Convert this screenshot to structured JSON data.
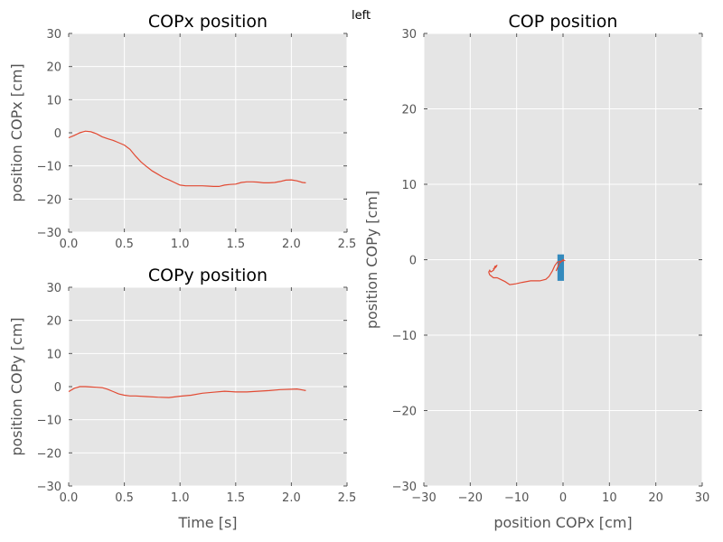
{
  "figure": {
    "top_label": "left"
  },
  "chart_data": [
    {
      "id": "copx",
      "type": "line",
      "title": "COPx position",
      "xlabel": "",
      "ylabel": "position COPx [cm]",
      "xlim": [
        0,
        2.5
      ],
      "ylim": [
        -30,
        30
      ],
      "xticks": [
        "0.0",
        "0.5",
        "1.0",
        "1.5",
        "2.0",
        "2.5"
      ],
      "xtick_values": [
        0,
        0.5,
        1.0,
        1.5,
        2.0,
        2.5
      ],
      "yticks": [
        "30",
        "20",
        "10",
        "0",
        "−10",
        "−20",
        "−30"
      ],
      "ytick_values": [
        30,
        20,
        10,
        0,
        -10,
        -20,
        -30
      ],
      "grid": true,
      "series": [
        {
          "color": "#e24a33",
          "x": [
            0.0,
            0.05,
            0.1,
            0.15,
            0.2,
            0.25,
            0.3,
            0.35,
            0.4,
            0.45,
            0.5,
            0.55,
            0.6,
            0.65,
            0.7,
            0.75,
            0.8,
            0.85,
            0.9,
            0.95,
            1.0,
            1.05,
            1.1,
            1.15,
            1.2,
            1.25,
            1.3,
            1.35,
            1.4,
            1.45,
            1.5,
            1.55,
            1.6,
            1.65,
            1.7,
            1.75,
            1.8,
            1.85,
            1.9,
            1.95,
            2.0,
            2.05,
            2.1,
            2.13
          ],
          "y": [
            -1.5,
            -0.8,
            0.0,
            0.5,
            0.3,
            -0.3,
            -1.2,
            -1.8,
            -2.3,
            -3.0,
            -3.7,
            -5.0,
            -7.0,
            -8.8,
            -10.2,
            -11.5,
            -12.5,
            -13.5,
            -14.2,
            -15.0,
            -15.8,
            -16.0,
            -16.0,
            -16.0,
            -16.0,
            -16.1,
            -16.2,
            -16.2,
            -15.8,
            -15.6,
            -15.5,
            -15.0,
            -14.8,
            -14.8,
            -14.9,
            -15.1,
            -15.1,
            -15.0,
            -14.7,
            -14.3,
            -14.2,
            -14.5,
            -15.0,
            -15.1
          ]
        }
      ]
    },
    {
      "id": "copy",
      "type": "line",
      "title": "COPy position",
      "xlabel": "Time [s]",
      "ylabel": "position COPy [cm]",
      "xlim": [
        0,
        2.5
      ],
      "ylim": [
        -30,
        30
      ],
      "xticks": [
        "0.0",
        "0.5",
        "1.0",
        "1.5",
        "2.0",
        "2.5"
      ],
      "xtick_values": [
        0,
        0.5,
        1.0,
        1.5,
        2.0,
        2.5
      ],
      "yticks": [
        "30",
        "20",
        "10",
        "0",
        "−10",
        "−20",
        "−30"
      ],
      "ytick_values": [
        30,
        20,
        10,
        0,
        -10,
        -20,
        -30
      ],
      "grid": true,
      "series": [
        {
          "color": "#e24a33",
          "x": [
            0.0,
            0.05,
            0.1,
            0.15,
            0.2,
            0.25,
            0.3,
            0.35,
            0.4,
            0.45,
            0.5,
            0.55,
            0.6,
            0.7,
            0.8,
            0.9,
            1.0,
            1.1,
            1.2,
            1.3,
            1.4,
            1.5,
            1.6,
            1.7,
            1.8,
            1.9,
            2.0,
            2.05,
            2.1,
            2.13
          ],
          "y": [
            -1.5,
            -0.5,
            0.0,
            0.0,
            -0.1,
            -0.2,
            -0.3,
            -0.8,
            -1.5,
            -2.2,
            -2.6,
            -2.8,
            -2.8,
            -3.0,
            -3.2,
            -3.3,
            -2.9,
            -2.6,
            -2.0,
            -1.7,
            -1.4,
            -1.6,
            -1.6,
            -1.4,
            -1.2,
            -0.9,
            -0.8,
            -0.7,
            -1.0,
            -1.2
          ]
        }
      ]
    },
    {
      "id": "cop",
      "type": "line",
      "title": "COP position",
      "xlabel": "position COPx [cm]",
      "ylabel": "position COPy [cm]",
      "xlim": [
        -30,
        30
      ],
      "ylim": [
        -30,
        30
      ],
      "xticks": [
        "−30",
        "−20",
        "−10",
        "0",
        "10",
        "20",
        "30"
      ],
      "xtick_values": [
        -30,
        -20,
        -10,
        0,
        10,
        20,
        30
      ],
      "yticks": [
        "30",
        "20",
        "10",
        "0",
        "−10",
        "−20",
        "−30"
      ],
      "ytick_values": [
        30,
        20,
        10,
        0,
        -10,
        -20,
        -30
      ],
      "grid": true,
      "marker": {
        "x": [
          -1.2,
          0.2
        ],
        "y": [
          -2.8,
          0.7
        ],
        "color": "#348abd"
      },
      "series": [
        {
          "color": "#e24a33",
          "x": [
            -1.5,
            -0.8,
            0.0,
            0.3,
            -0.3,
            -1.2,
            -1.8,
            -2.3,
            -3.0,
            -3.7,
            -5.0,
            -7.0,
            -8.8,
            -10.2,
            -11.5,
            -12.5,
            -13.5,
            -14.2,
            -15.0,
            -15.8,
            -16.0,
            -16.0,
            -15.8,
            -15.6,
            -15.5,
            -15.0,
            -14.8,
            -14.7,
            -14.3,
            -14.2,
            -14.5,
            -15.0,
            -15.1
          ],
          "y": [
            -1.5,
            -0.5,
            0.0,
            -0.1,
            -0.2,
            -0.3,
            -0.8,
            -1.5,
            -2.2,
            -2.6,
            -2.8,
            -2.8,
            -3.0,
            -3.2,
            -3.3,
            -2.9,
            -2.6,
            -2.4,
            -2.4,
            -2.0,
            -1.7,
            -1.6,
            -1.4,
            -1.6,
            -1.6,
            -1.4,
            -1.2,
            -0.9,
            -0.8,
            -0.7,
            -1.0,
            -1.2,
            -1.2
          ]
        }
      ]
    }
  ]
}
